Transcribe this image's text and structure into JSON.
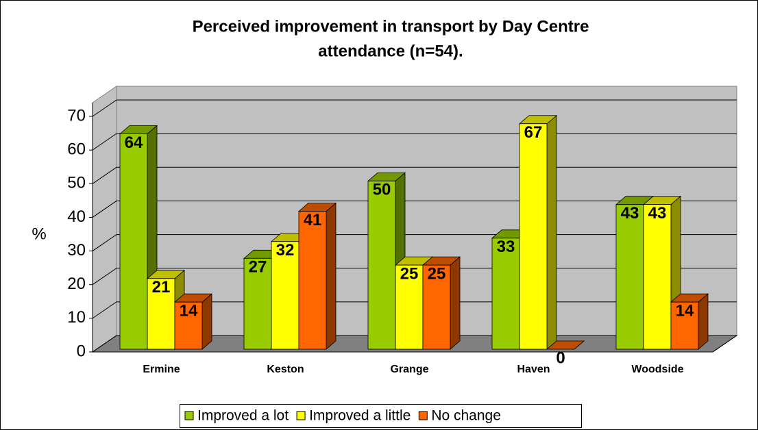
{
  "chart_data": {
    "type": "bar3d",
    "title": "Perceived improvement in transport by Day Centre",
    "subtitle": "attendance (n=54).",
    "y_label": "%",
    "categories": [
      "Ermine",
      "Keston",
      "Grange",
      "Haven",
      "Woodside"
    ],
    "series": [
      {
        "name": "Improved a lot",
        "color": "#99cc00",
        "values": [
          64,
          27,
          50,
          33,
          43
        ]
      },
      {
        "name": "Improved a little",
        "color": "#ffff00",
        "values": [
          21,
          32,
          25,
          67,
          43
        ]
      },
      {
        "name": "No change",
        "color": "#ff6600",
        "values": [
          14,
          41,
          25,
          0,
          14
        ]
      }
    ],
    "ylim": [
      0,
      70
    ],
    "yticks": [
      0,
      10,
      20,
      30,
      40,
      50,
      60,
      70
    ],
    "grid": true,
    "legend": "bottom"
  }
}
